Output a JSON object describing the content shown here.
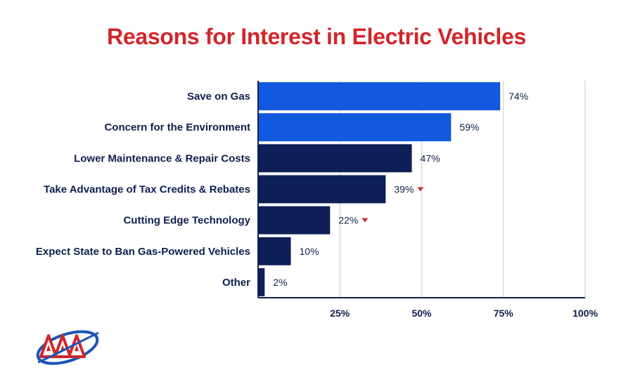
{
  "chart_data": {
    "type": "bar",
    "orientation": "horizontal",
    "title": "Reasons for Interest in Electric Vehicles",
    "categories": [
      "Save on Gas",
      "Concern for the Environment",
      "Lower Maintenance & Repair Costs",
      "Take Advantage of Tax Credits & Rebates",
      "Cutting Edge Technology",
      "Expect State to Ban Gas-Powered Vehicles",
      "Other"
    ],
    "values": [
      74,
      59,
      47,
      39,
      22,
      10,
      2
    ],
    "value_labels": [
      "74%",
      "59%",
      "47%",
      "39%",
      "22%",
      "10%",
      "2%"
    ],
    "decreased": [
      false,
      false,
      false,
      true,
      true,
      false,
      false
    ],
    "highlighted": [
      true,
      true,
      false,
      false,
      false,
      false,
      false
    ],
    "xlim": [
      0,
      100
    ],
    "xticks": [
      25,
      50,
      75,
      100
    ],
    "xtick_labels": [
      "25%",
      "50%",
      "75%",
      "100%"
    ],
    "grid": true,
    "xlabel": "",
    "ylabel": ""
  },
  "colors": {
    "title": "#d1262b",
    "highlight_bar": "#1259e0",
    "default_bar": "#0d1f56",
    "decrease_marker": "#d1262b",
    "grid": "#dcdcdc",
    "axis": "#0d1f56",
    "text": "#0f1f4d"
  },
  "logo": {
    "name": "aaa-logo"
  }
}
